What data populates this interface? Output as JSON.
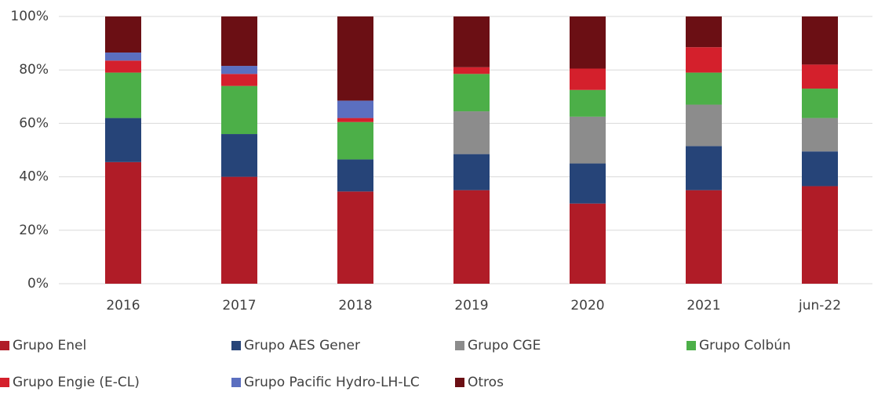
{
  "chart_data": {
    "type": "stacked_bar",
    "categories": [
      "2016",
      "2017",
      "2018",
      "2019",
      "2020",
      "2021",
      "jun-22"
    ],
    "series": [
      {
        "name": "Grupo Enel",
        "color": "#b01c27",
        "values": [
          45.5,
          40,
          34.5,
          35,
          30,
          35,
          36.5
        ]
      },
      {
        "name": "Grupo AES Gener",
        "color": "#264478",
        "values": [
          16.5,
          16,
          12,
          13.5,
          15,
          16.5,
          13
        ]
      },
      {
        "name": "Grupo CGE",
        "color": "#8c8c8c",
        "values": [
          0,
          0,
          0,
          16,
          17.5,
          15.5,
          12.5
        ]
      },
      {
        "name": "Grupo Colbún",
        "color": "#4caf48",
        "values": [
          17,
          18,
          14,
          14,
          10,
          12,
          11
        ]
      },
      {
        "name": "Grupo Engie (E-CL)",
        "color": "#d4202c",
        "values": [
          4.5,
          4.5,
          1.5,
          2.5,
          8,
          9.5,
          9
        ]
      },
      {
        "name": "Grupo Pacific Hydro-LH-LC",
        "color": "#5b6fc0",
        "values": [
          3,
          3,
          6.5,
          0,
          0,
          0,
          0
        ]
      },
      {
        "name": "Otros",
        "color": "#6b0f14",
        "values": [
          13.5,
          18.5,
          31.5,
          19,
          19.5,
          11.5,
          18
        ]
      }
    ],
    "ylim": [
      0,
      100
    ],
    "yticks": [
      {
        "value": 0,
        "label": "0%"
      },
      {
        "value": 20,
        "label": "20%"
      },
      {
        "value": 40,
        "label": "40%"
      },
      {
        "value": 60,
        "label": "60%"
      },
      {
        "value": 80,
        "label": "80%"
      },
      {
        "value": 100,
        "label": "100%"
      }
    ],
    "grid": true,
    "legend": "bottom"
  }
}
